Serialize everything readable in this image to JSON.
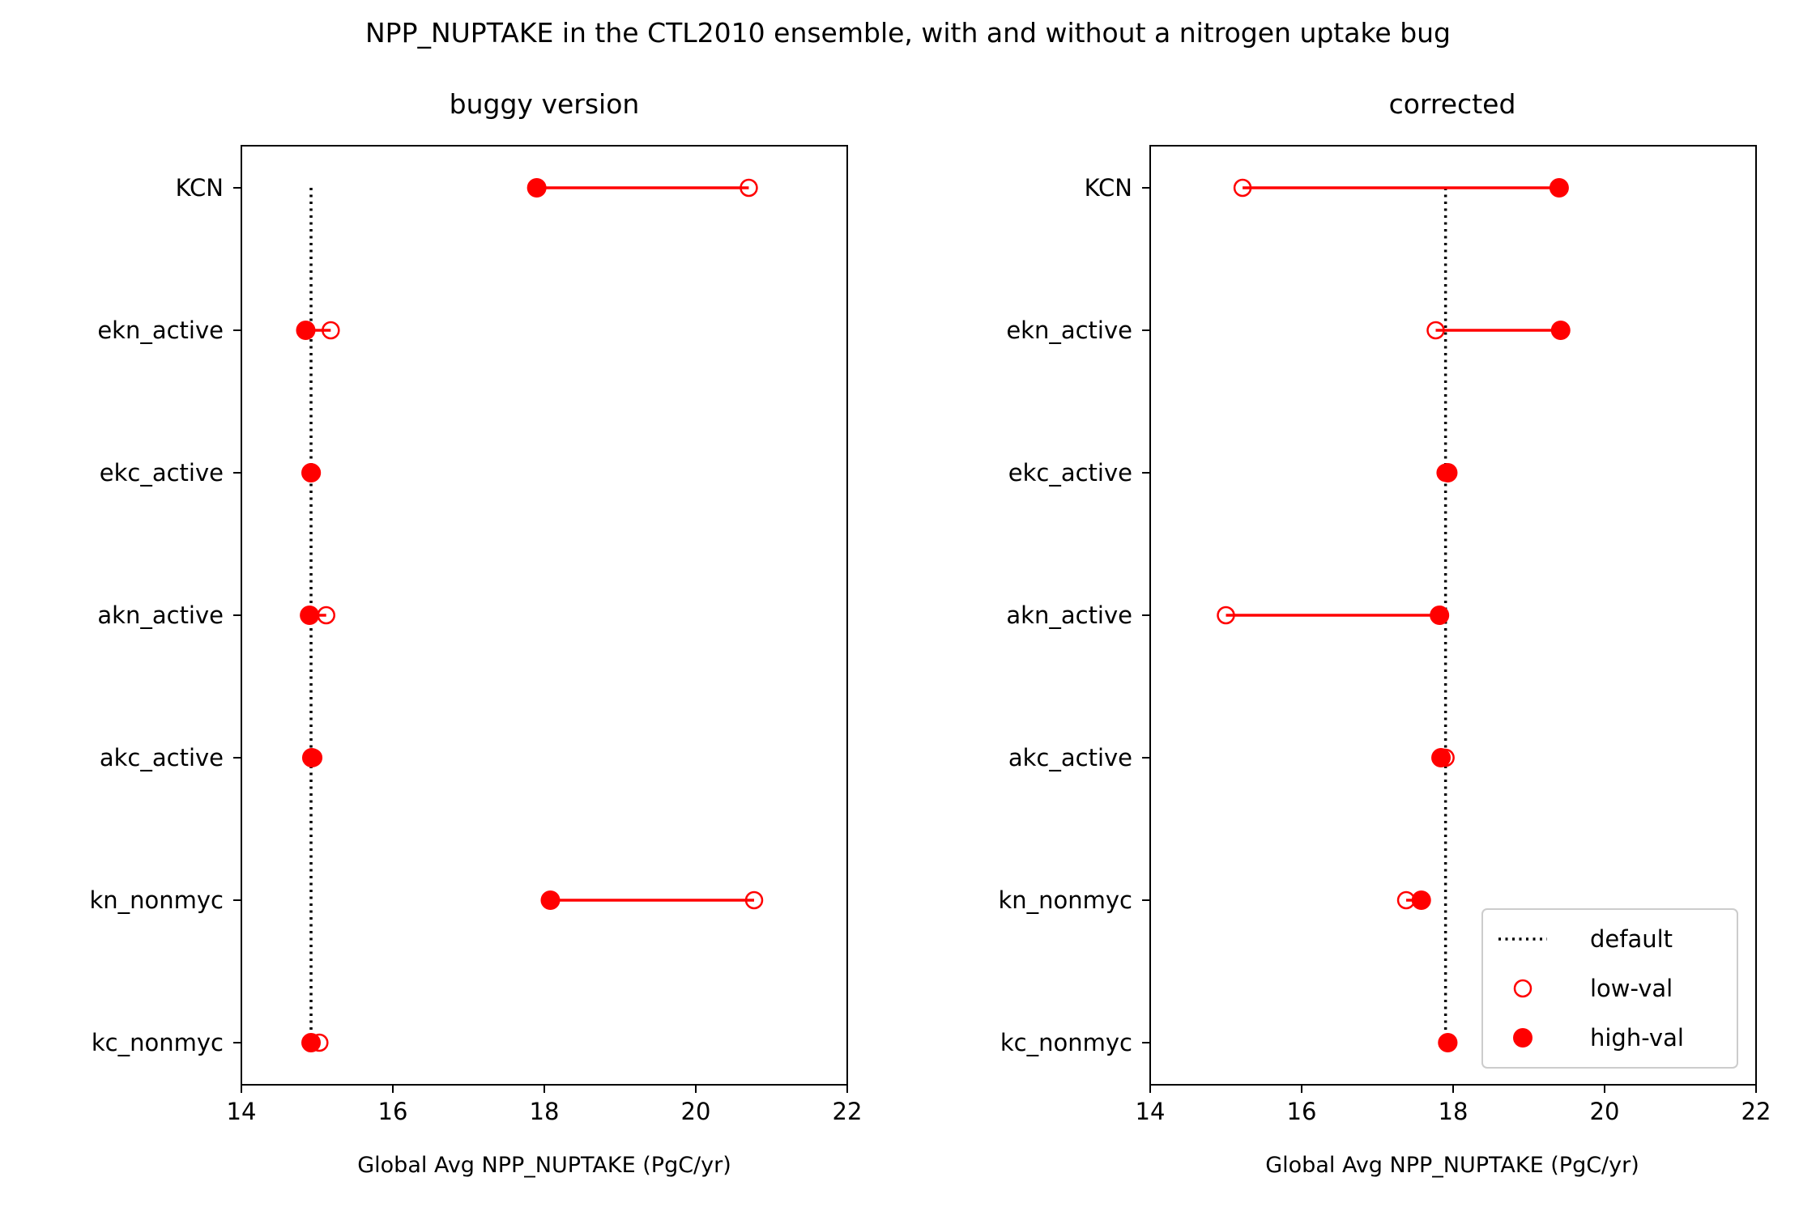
{
  "figure": {
    "title": "NPP_NUPTAKE in the CTL2010 ensemble, with and without a nitrogen uptake bug"
  },
  "colors": {
    "marker": "#ff0000",
    "default_line": "#000000",
    "axes": "#000000",
    "legend_border": "#cccccc"
  },
  "legend": {
    "placement": "lower right",
    "panel": 1,
    "items": [
      {
        "label": "default",
        "style": "dotted-line"
      },
      {
        "label": "low-val",
        "style": "open-circle"
      },
      {
        "label": "high-val",
        "style": "filled-circle"
      }
    ]
  },
  "chart_data": [
    {
      "type": "dumbbell",
      "title": "buggy version",
      "xlabel": "Global Avg NPP_NUPTAKE (PgC/yr)",
      "ylabel": "",
      "xlim": [
        14,
        22
      ],
      "xticks": [
        "14",
        "16",
        "18",
        "20",
        "22"
      ],
      "categories": [
        "KCN",
        "ekn_active",
        "ekc_active",
        "akn_active",
        "akc_active",
        "kn_nonmyc",
        "kc_nonmyc"
      ],
      "default": 14.92,
      "series": [
        {
          "name": "low-val",
          "values": [
            20.7,
            15.18,
            14.93,
            15.12,
            14.95,
            20.77,
            15.03
          ]
        },
        {
          "name": "high-val",
          "values": [
            17.9,
            14.85,
            14.92,
            14.9,
            14.93,
            18.08,
            14.92
          ]
        }
      ]
    },
    {
      "type": "dumbbell",
      "title": "corrected",
      "xlabel": "Global Avg NPP_NUPTAKE (PgC/yr)",
      "ylabel": "",
      "xlim": [
        14,
        22
      ],
      "xticks": [
        "14",
        "16",
        "18",
        "20",
        "22"
      ],
      "categories": [
        "KCN",
        "ekn_active",
        "ekc_active",
        "akn_active",
        "akc_active",
        "kn_nonmyc",
        "kc_nonmyc"
      ],
      "default": 17.9,
      "series": [
        {
          "name": "low-val",
          "values": [
            15.22,
            17.77,
            17.9,
            15.0,
            17.9,
            17.38,
            17.92
          ]
        },
        {
          "name": "high-val",
          "values": [
            19.4,
            19.42,
            17.93,
            17.82,
            17.84,
            17.58,
            17.93
          ]
        }
      ]
    }
  ]
}
